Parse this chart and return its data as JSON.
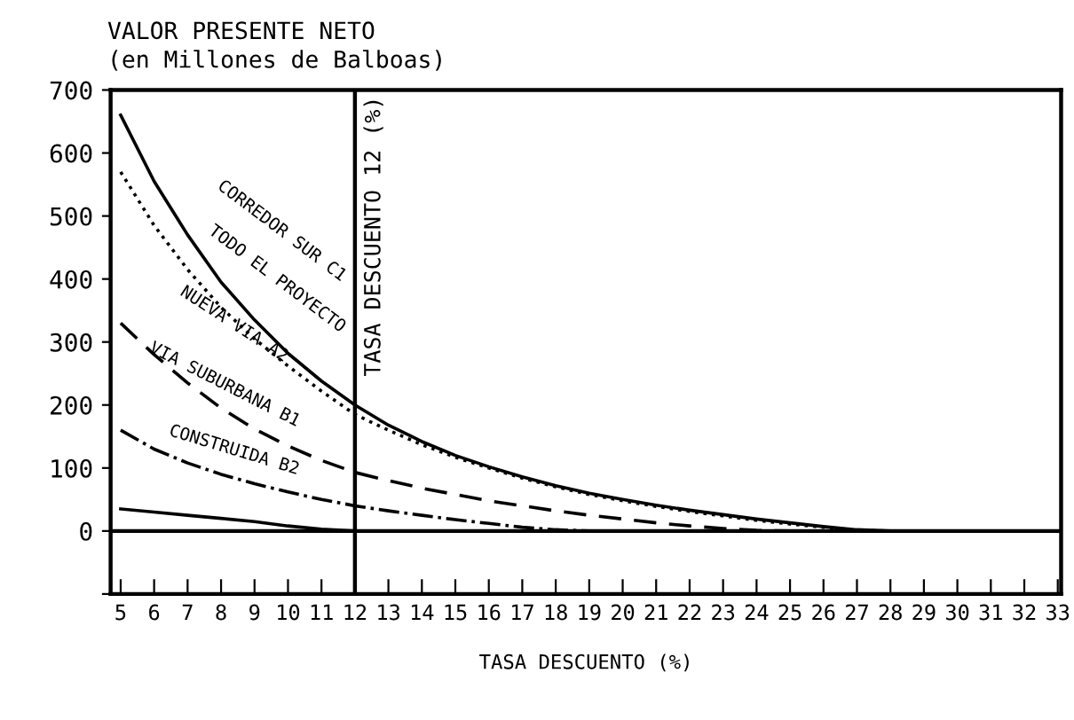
{
  "chart_data": {
    "type": "line",
    "title": "VALOR PRESENTE NETO",
    "subtitle": "(en Millones de Balboas)",
    "xlabel": "TASA DESCUENTO (%)",
    "x": [
      5,
      6,
      7,
      8,
      9,
      10,
      11,
      12,
      13,
      14,
      15,
      16,
      17,
      18,
      19,
      20,
      21,
      22,
      23,
      24,
      25,
      26,
      27,
      28,
      29,
      30,
      31,
      32,
      33
    ],
    "series": [
      {
        "color": "#000000",
        "line_style": "solid",
        "values": [
          660,
          555,
          470,
          395,
          335,
          282,
          238,
          200,
          168,
          142,
          120,
          102,
          86,
          72,
          60,
          50,
          41,
          33,
          26,
          19,
          13,
          7,
          2,
          0,
          0,
          0,
          0,
          0,
          0
        ]
      },
      {
        "color": "#000000",
        "line_style": "dotted",
        "values": [
          570,
          485,
          415,
          355,
          305,
          262,
          222,
          185,
          160,
          137,
          117,
          100,
          84,
          70,
          58,
          48,
          39,
          31,
          24,
          17,
          11,
          6,
          1,
          0,
          0,
          0,
          0,
          0,
          0
        ]
      },
      {
        "color": "#000000",
        "line_style": "dashed",
        "values": [
          330,
          280,
          235,
          195,
          162,
          135,
          112,
          93,
          80,
          68,
          58,
          48,
          40,
          32,
          25,
          19,
          13,
          8,
          4,
          1,
          0,
          0,
          0,
          0,
          0,
          0,
          0,
          0,
          0
        ]
      },
      {
        "color": "#000000",
        "line_style": "dashdot",
        "values": [
          160,
          130,
          108,
          90,
          75,
          62,
          50,
          40,
          32,
          25,
          18,
          12,
          6,
          2,
          0,
          0,
          0,
          0,
          0,
          0,
          0,
          0,
          0,
          0,
          0,
          0,
          0,
          0,
          0
        ]
      },
      {
        "color": "#000000",
        "line_style": "solid",
        "values": [
          35,
          30,
          25,
          20,
          15,
          8,
          3,
          0,
          0,
          0,
          0,
          0,
          0,
          0,
          0,
          0,
          0,
          0,
          0,
          0,
          0,
          0,
          0,
          0,
          0,
          0,
          0,
          0,
          0
        ]
      }
    ],
    "xlim": [
      4.7,
      33.1
    ],
    "ylim": [
      -100,
      700
    ],
    "xticks": [
      5,
      6,
      7,
      8,
      9,
      10,
      11,
      12,
      13,
      14,
      15,
      16,
      17,
      18,
      19,
      20,
      21,
      22,
      23,
      24,
      25,
      26,
      27,
      28,
      29,
      30,
      31,
      32,
      33
    ],
    "yticks": [
      {
        "value": -100,
        "label": null
      },
      0,
      100,
      200,
      300,
      400,
      500,
      600,
      700
    ],
    "ref_lines": [
      {
        "axis": "x",
        "value": 12,
        "label": "TASA DESCUENTO 12 (%)"
      },
      {
        "axis": "y",
        "value": 0
      }
    ],
    "annotations": [
      "CORREDOR SUR C1",
      "TODO EL PROYECTO",
      "NUEVA VIA A2",
      "VIA SUBURBANA B1",
      "CONSTRUIDA B2"
    ],
    "grid": false,
    "legend": false,
    "marker": "none"
  }
}
